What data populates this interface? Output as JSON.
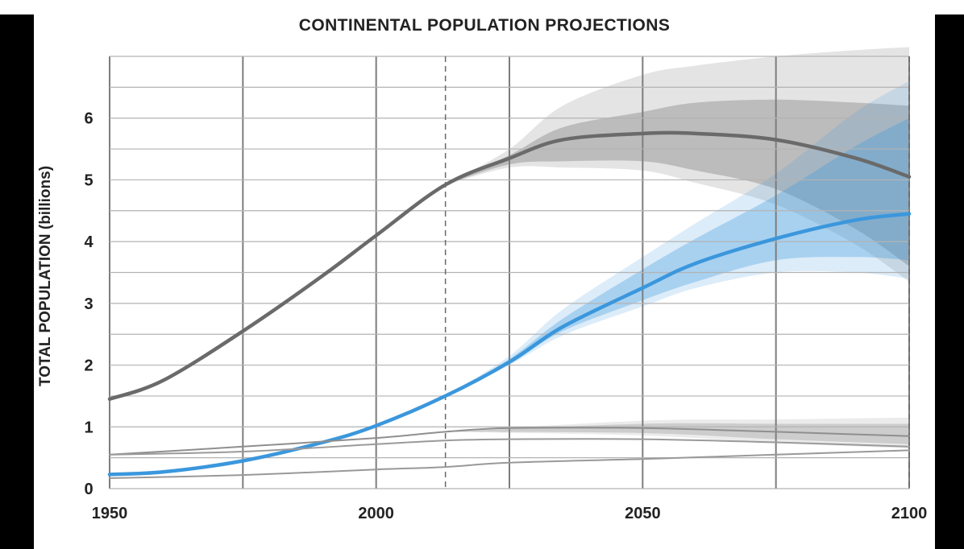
{
  "chart_data": {
    "type": "line",
    "title": "CONTINENTAL POPULATION PROJECTIONS",
    "ylabel": "TOTAL POPULATION (billions)",
    "xlabel": "",
    "xlim": [
      1950,
      2100
    ],
    "ylim": [
      0,
      7
    ],
    "x_ticks": [
      1950,
      2000,
      2050,
      2100
    ],
    "y_ticks": [
      0,
      1,
      2,
      3,
      4,
      5,
      6
    ],
    "grid": true,
    "projection_start_year": 2013,
    "series": [
      {
        "color": "#6a6a6a",
        "points": [
          [
            1950,
            1.45
          ],
          [
            1960,
            1.75
          ],
          [
            1975,
            2.55
          ],
          [
            1990,
            3.45
          ],
          [
            2000,
            4.1
          ],
          [
            2013,
            4.92
          ],
          [
            2025,
            5.35
          ],
          [
            2035,
            5.65
          ],
          [
            2050,
            5.75
          ],
          [
            2060,
            5.75
          ],
          [
            2075,
            5.65
          ],
          [
            2090,
            5.35
          ],
          [
            2100,
            5.05
          ]
        ],
        "band_80": [
          [
            2013,
            4.92,
            4.92
          ],
          [
            2025,
            5.25,
            5.4
          ],
          [
            2035,
            5.3,
            5.85
          ],
          [
            2050,
            5.3,
            6.1
          ],
          [
            2060,
            5.15,
            6.25
          ],
          [
            2075,
            4.85,
            6.3
          ],
          [
            2090,
            4.2,
            6.25
          ],
          [
            2100,
            3.6,
            6.2
          ]
        ],
        "band_95": [
          [
            2013,
            4.92,
            4.92
          ],
          [
            2025,
            5.2,
            5.5
          ],
          [
            2035,
            5.2,
            6.2
          ],
          [
            2050,
            5.15,
            6.7
          ],
          [
            2060,
            4.95,
            6.85
          ],
          [
            2075,
            4.6,
            7.0
          ],
          [
            2090,
            3.95,
            7.1
          ],
          [
            2100,
            3.35,
            7.15
          ]
        ]
      },
      {
        "color": "#3b97dc",
        "points": [
          [
            1950,
            0.23
          ],
          [
            1960,
            0.27
          ],
          [
            1975,
            0.45
          ],
          [
            1990,
            0.75
          ],
          [
            2000,
            1.02
          ],
          [
            2013,
            1.5
          ],
          [
            2025,
            2.05
          ],
          [
            2035,
            2.62
          ],
          [
            2050,
            3.25
          ],
          [
            2060,
            3.65
          ],
          [
            2075,
            4.05
          ],
          [
            2090,
            4.35
          ],
          [
            2100,
            4.45
          ]
        ],
        "band_80": [
          [
            2013,
            1.5,
            1.5
          ],
          [
            2025,
            2.02,
            2.1
          ],
          [
            2035,
            2.55,
            2.75
          ],
          [
            2050,
            3.05,
            3.55
          ],
          [
            2060,
            3.35,
            4.05
          ],
          [
            2075,
            3.7,
            4.75
          ],
          [
            2090,
            3.75,
            5.55
          ],
          [
            2100,
            3.7,
            6.0
          ]
        ],
        "band_95": [
          [
            2013,
            1.5,
            1.5
          ],
          [
            2025,
            2.0,
            2.15
          ],
          [
            2035,
            2.48,
            2.9
          ],
          [
            2050,
            2.95,
            3.75
          ],
          [
            2060,
            3.25,
            4.3
          ],
          [
            2075,
            3.5,
            5.1
          ],
          [
            2090,
            3.5,
            6.1
          ],
          [
            2100,
            3.4,
            6.6
          ]
        ]
      },
      {
        "color": "#8f8f8f",
        "points": [
          [
            1950,
            0.55
          ],
          [
            1975,
            0.68
          ],
          [
            2000,
            0.82
          ],
          [
            2013,
            0.92
          ],
          [
            2025,
            0.98
          ],
          [
            2050,
            0.98
          ],
          [
            2075,
            0.92
          ],
          [
            2100,
            0.85
          ]
        ],
        "band_80": [
          [
            2013,
            0.92,
            0.92
          ],
          [
            2050,
            0.9,
            1.05
          ],
          [
            2075,
            0.8,
            1.05
          ],
          [
            2100,
            0.72,
            1.05
          ]
        ],
        "band_95": [
          [
            2013,
            0.92,
            0.92
          ],
          [
            2050,
            0.86,
            1.1
          ],
          [
            2075,
            0.74,
            1.12
          ],
          [
            2100,
            0.65,
            1.15
          ]
        ]
      },
      {
        "color": "#9a9a9a",
        "points": [
          [
            1950,
            0.55
          ],
          [
            1975,
            0.6
          ],
          [
            2000,
            0.72
          ],
          [
            2013,
            0.78
          ],
          [
            2025,
            0.8
          ],
          [
            2050,
            0.8
          ],
          [
            2075,
            0.75
          ],
          [
            2100,
            0.68
          ]
        ],
        "band_80": [],
        "band_95": []
      },
      {
        "color": "#999999",
        "points": [
          [
            1950,
            0.17
          ],
          [
            1975,
            0.22
          ],
          [
            2000,
            0.31
          ],
          [
            2013,
            0.35
          ],
          [
            2025,
            0.42
          ],
          [
            2050,
            0.48
          ],
          [
            2075,
            0.55
          ],
          [
            2100,
            0.62
          ]
        ],
        "band_80": [],
        "band_95": []
      }
    ]
  }
}
